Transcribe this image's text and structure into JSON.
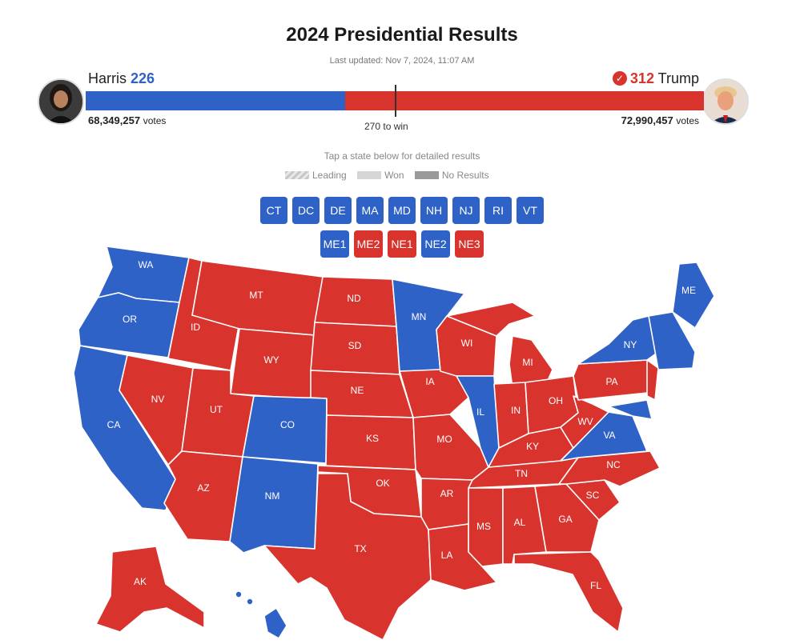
{
  "header": {
    "title": "2024 Presidential Results",
    "updated": "Last updated: Nov 7, 2024, 11:07 AM",
    "tap_hint": "Tap a state below for detailed results",
    "to_win": "270 to win"
  },
  "candidates": {
    "harris": {
      "name": "Harris",
      "electoral_votes": "226",
      "popular_votes": "68,349,257",
      "votes_label": "votes",
      "color": "#2f62c6"
    },
    "trump": {
      "name": "Trump",
      "electoral_votes": "312",
      "popular_votes": "72,990,457",
      "votes_label": "votes",
      "color": "#d8332c",
      "check_icon": "check-icon"
    }
  },
  "electoral_bar": {
    "harris_share": 0.42,
    "trump_share": 0.58,
    "midpoint_share": 0.5
  },
  "legend": {
    "leading": "Leading",
    "won": "Won",
    "no_results": "No Results"
  },
  "colors": {
    "dem": "#2f62c6",
    "rep": "#d8332c"
  },
  "small_states": [
    {
      "code": "CT",
      "party": "dem"
    },
    {
      "code": "DC",
      "party": "dem"
    },
    {
      "code": "DE",
      "party": "dem"
    },
    {
      "code": "MA",
      "party": "dem"
    },
    {
      "code": "MD",
      "party": "dem"
    },
    {
      "code": "NH",
      "party": "dem"
    },
    {
      "code": "NJ",
      "party": "dem"
    },
    {
      "code": "RI",
      "party": "dem"
    },
    {
      "code": "VT",
      "party": "dem"
    }
  ],
  "districts": [
    {
      "code": "ME1",
      "party": "dem"
    },
    {
      "code": "ME2",
      "party": "rep"
    },
    {
      "code": "NE1",
      "party": "rep"
    },
    {
      "code": "NE2",
      "party": "dem"
    },
    {
      "code": "NE3",
      "party": "rep"
    }
  ],
  "map_states": [
    {
      "code": "WA",
      "party": "dem"
    },
    {
      "code": "OR",
      "party": "dem"
    },
    {
      "code": "CA",
      "party": "dem"
    },
    {
      "code": "ID",
      "party": "rep"
    },
    {
      "code": "NV",
      "party": "rep"
    },
    {
      "code": "MT",
      "party": "rep"
    },
    {
      "code": "WY",
      "party": "rep"
    },
    {
      "code": "UT",
      "party": "rep"
    },
    {
      "code": "AZ",
      "party": "rep"
    },
    {
      "code": "CO",
      "party": "dem"
    },
    {
      "code": "NM",
      "party": "dem"
    },
    {
      "code": "ND",
      "party": "rep"
    },
    {
      "code": "SD",
      "party": "rep"
    },
    {
      "code": "NE",
      "party": "rep"
    },
    {
      "code": "KS",
      "party": "rep"
    },
    {
      "code": "OK",
      "party": "rep"
    },
    {
      "code": "TX",
      "party": "rep"
    },
    {
      "code": "MN",
      "party": "dem"
    },
    {
      "code": "IA",
      "party": "rep"
    },
    {
      "code": "MO",
      "party": "rep"
    },
    {
      "code": "AR",
      "party": "rep"
    },
    {
      "code": "LA",
      "party": "rep"
    },
    {
      "code": "WI",
      "party": "rep"
    },
    {
      "code": "IL",
      "party": "dem"
    },
    {
      "code": "MI",
      "party": "rep"
    },
    {
      "code": "IN",
      "party": "rep"
    },
    {
      "code": "OH",
      "party": "rep"
    },
    {
      "code": "KY",
      "party": "rep"
    },
    {
      "code": "TN",
      "party": "rep"
    },
    {
      "code": "MS",
      "party": "rep"
    },
    {
      "code": "AL",
      "party": "rep"
    },
    {
      "code": "GA",
      "party": "rep"
    },
    {
      "code": "FL",
      "party": "rep"
    },
    {
      "code": "SC",
      "party": "rep"
    },
    {
      "code": "NC",
      "party": "rep"
    },
    {
      "code": "VA",
      "party": "dem"
    },
    {
      "code": "WV",
      "party": "rep"
    },
    {
      "code": "PA",
      "party": "rep"
    },
    {
      "code": "NY",
      "party": "dem"
    },
    {
      "code": "ME",
      "party": "dem"
    },
    {
      "code": "AK",
      "party": "rep"
    },
    {
      "code": "HI",
      "party": "dem"
    }
  ]
}
